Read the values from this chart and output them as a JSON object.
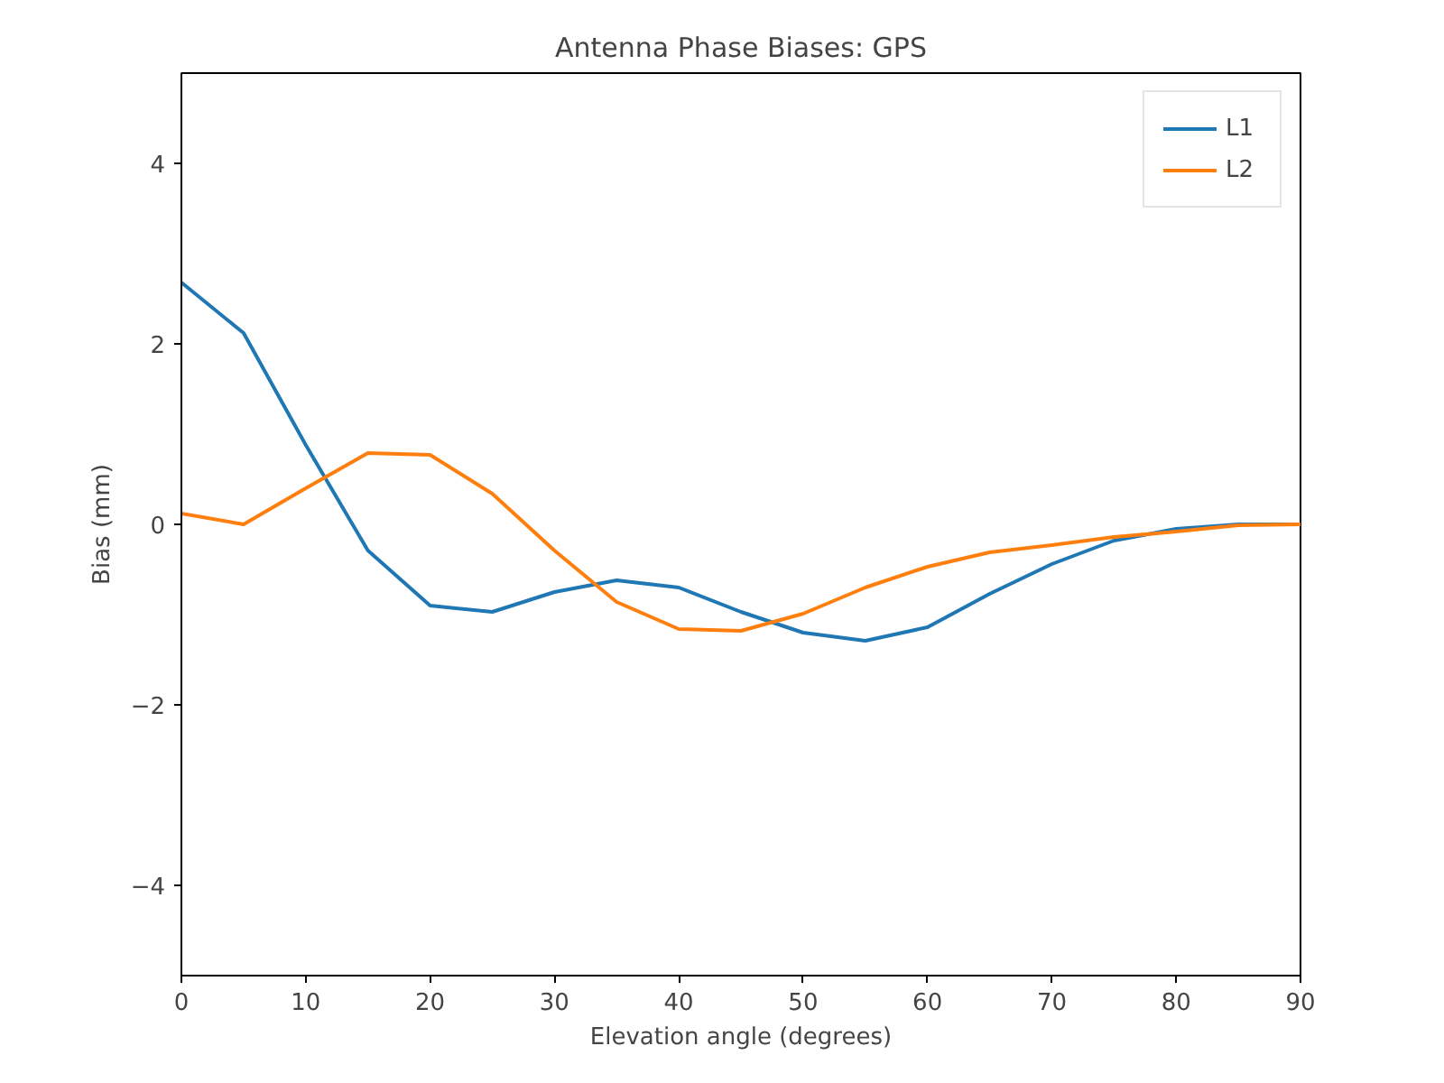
{
  "chart_data": {
    "type": "line",
    "title": "Antenna Phase Biases: GPS",
    "xlabel": "Elevation angle (degrees)",
    "ylabel": "Bias (mm)",
    "x": [
      0,
      5,
      10,
      15,
      20,
      25,
      30,
      35,
      40,
      45,
      50,
      55,
      60,
      65,
      70,
      75,
      80,
      85,
      90
    ],
    "series": [
      {
        "name": "L1",
        "color": "#1f77b4",
        "values": [
          2.68,
          2.12,
          0.88,
          -0.29,
          -0.9,
          -0.97,
          -0.75,
          -0.62,
          -0.7,
          -0.97,
          -1.2,
          -1.29,
          -1.14,
          -0.77,
          -0.44,
          -0.18,
          -0.05,
          0,
          0
        ]
      },
      {
        "name": "L2",
        "color": "#ff7f0e",
        "values": [
          0.12,
          0,
          0.4,
          0.79,
          0.77,
          0.34,
          -0.29,
          -0.86,
          -1.16,
          -1.18,
          -0.99,
          -0.7,
          -0.47,
          -0.31,
          -0.23,
          -0.14,
          -0.08,
          -0.01,
          0
        ]
      }
    ],
    "xlim": [
      0,
      90
    ],
    "ylim": [
      -5,
      5
    ],
    "xticks": [
      0,
      10,
      20,
      30,
      40,
      50,
      60,
      70,
      80,
      90
    ],
    "yticks": [
      {
        "value": -4,
        "label": "−4"
      },
      {
        "value": -2,
        "label": "−2"
      },
      0,
      2,
      4
    ],
    "grid": false,
    "legend": "top right",
    "line_style": "solid",
    "marker": "none"
  }
}
